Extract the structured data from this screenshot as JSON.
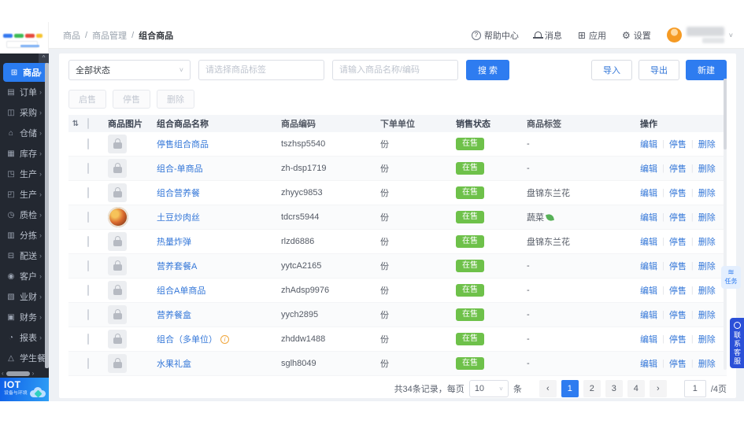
{
  "ui": {
    "slash": "/",
    "sort_glyph": "⇅",
    "chevron_right": "›",
    "chevron_down": "˅",
    "caret_up": "^",
    "prev": "‹",
    "next": "›",
    "task_icon_glyph": "≋",
    "service_icon_glyph": "☺",
    "divider": "|",
    "info_glyph": "i"
  },
  "colors": {
    "primary": "#2e7cf0",
    "badge_green": "#6ec14a",
    "sidebar_bg": "#232831",
    "link_blue": "#3477d8"
  },
  "sidebar": {
    "items": [
      {
        "name": "products",
        "label": "商品",
        "glyph": "⊞",
        "active": true
      },
      {
        "name": "orders",
        "label": "订单",
        "glyph": "▤",
        "active": false
      },
      {
        "name": "purchase",
        "label": "采购",
        "glyph": "◫",
        "active": false
      },
      {
        "name": "warehouse",
        "label": "仓储",
        "glyph": "⌂",
        "active": false
      },
      {
        "name": "inventory",
        "label": "库存",
        "glyph": "▦",
        "active": false
      },
      {
        "name": "production-1",
        "label": "生产",
        "glyph": "◳",
        "active": false
      },
      {
        "name": "production-2",
        "label": "生产",
        "glyph": "◰",
        "active": false
      },
      {
        "name": "quality-check",
        "label": "质检",
        "glyph": "◷",
        "active": false
      },
      {
        "name": "sorting",
        "label": "分拣",
        "glyph": "▥",
        "active": false
      },
      {
        "name": "delivery",
        "label": "配送",
        "glyph": "⊟",
        "active": false
      },
      {
        "name": "customers",
        "label": "客户",
        "glyph": "◉",
        "active": false
      },
      {
        "name": "business-finance",
        "label": "业财",
        "glyph": "▧",
        "active": false
      },
      {
        "name": "finance",
        "label": "财务",
        "glyph": "▣",
        "active": false
      },
      {
        "name": "reports",
        "label": "报表",
        "glyph": "◔",
        "active": false
      },
      {
        "name": "student-meal",
        "label": "学生餐",
        "glyph": "△",
        "active": false
      }
    ],
    "footer": {
      "title": "IOT",
      "subtitle": "设备与环境"
    }
  },
  "topbar": {
    "breadcrumb": [
      "商品",
      "商品管理",
      "组合商品"
    ],
    "actions": [
      {
        "icon": "help-circle",
        "label": "帮助中心",
        "glyph": "?"
      },
      {
        "icon": "bell",
        "label": "消息",
        "glyph": ""
      },
      {
        "icon": "apps",
        "label": "应用",
        "glyph": "⊞"
      },
      {
        "icon": "gear",
        "label": "设置",
        "glyph": "⚙"
      }
    ]
  },
  "filters": {
    "status_select": "全部状态",
    "tag_placeholder": "请选择商品标签",
    "keyword_placeholder": "请输入商品名称/编码",
    "search_label": "搜 索"
  },
  "toolbar": {
    "import_label": "导入",
    "export_label": "导出",
    "create_label": "新建"
  },
  "bulk_actions": [
    {
      "name": "start-sale",
      "label": "启售"
    },
    {
      "name": "stop-sale",
      "label": "停售"
    },
    {
      "name": "delete",
      "label": "删除"
    }
  ],
  "table": {
    "columns": [
      "商品图片",
      "组合商品名称",
      "商品编码",
      "下单单位",
      "销售状态",
      "商品标签",
      "操作"
    ],
    "row_actions": [
      "编辑",
      "停售",
      "删除"
    ],
    "rows": [
      {
        "name": "停售组合商品",
        "code": "tszhsp5540",
        "unit": "份",
        "status": "在售",
        "tag": "-",
        "image": "placeholder",
        "info": false,
        "tag_leaf": false
      },
      {
        "name": "组合-单商品",
        "code": "zh-dsp1719",
        "unit": "份",
        "status": "在售",
        "tag": "-",
        "image": "placeholder",
        "info": false,
        "tag_leaf": false
      },
      {
        "name": "组合营养餐",
        "code": "zhyyc9853",
        "unit": "份",
        "status": "在售",
        "tag": "盘锦东兰花",
        "image": "placeholder",
        "info": false,
        "tag_leaf": false
      },
      {
        "name": "土豆炒肉丝",
        "code": "tdcrs5944",
        "unit": "份",
        "status": "在售",
        "tag": "蔬菜",
        "image": "photo",
        "info": false,
        "tag_leaf": true
      },
      {
        "name": "热量炸弹",
        "code": "rlzd6886",
        "unit": "份",
        "status": "在售",
        "tag": "盘锦东兰花",
        "image": "placeholder",
        "info": false,
        "tag_leaf": false
      },
      {
        "name": "营养套餐A",
        "code": "yytcA2165",
        "unit": "份",
        "status": "在售",
        "tag": "-",
        "image": "placeholder",
        "info": false,
        "tag_leaf": false
      },
      {
        "name": "组合A单商品",
        "code": "zhAdsp9976",
        "unit": "份",
        "status": "在售",
        "tag": "-",
        "image": "placeholder",
        "info": false,
        "tag_leaf": false
      },
      {
        "name": "营养餐盒",
        "code": "yych2895",
        "unit": "份",
        "status": "在售",
        "tag": "-",
        "image": "placeholder",
        "info": false,
        "tag_leaf": false
      },
      {
        "name": "组合（多单位）",
        "code": "zhddw1488",
        "unit": "份",
        "status": "在售",
        "tag": "-",
        "image": "placeholder",
        "info": true,
        "tag_leaf": false
      },
      {
        "name": "水果礼盒",
        "code": "sglh8049",
        "unit": "份",
        "status": "在售",
        "tag": "-",
        "image": "placeholder",
        "info": false,
        "tag_leaf": false
      }
    ]
  },
  "pagination": {
    "total_text": "共34条记录，每页",
    "page_size": "10",
    "unit_text": "条",
    "pages": [
      "1",
      "2",
      "3",
      "4"
    ],
    "active_page": "1",
    "jump_value": "1",
    "total_pages_text": "/4页"
  },
  "floating": {
    "task_label": "任务",
    "service_label": "联系客服"
  }
}
